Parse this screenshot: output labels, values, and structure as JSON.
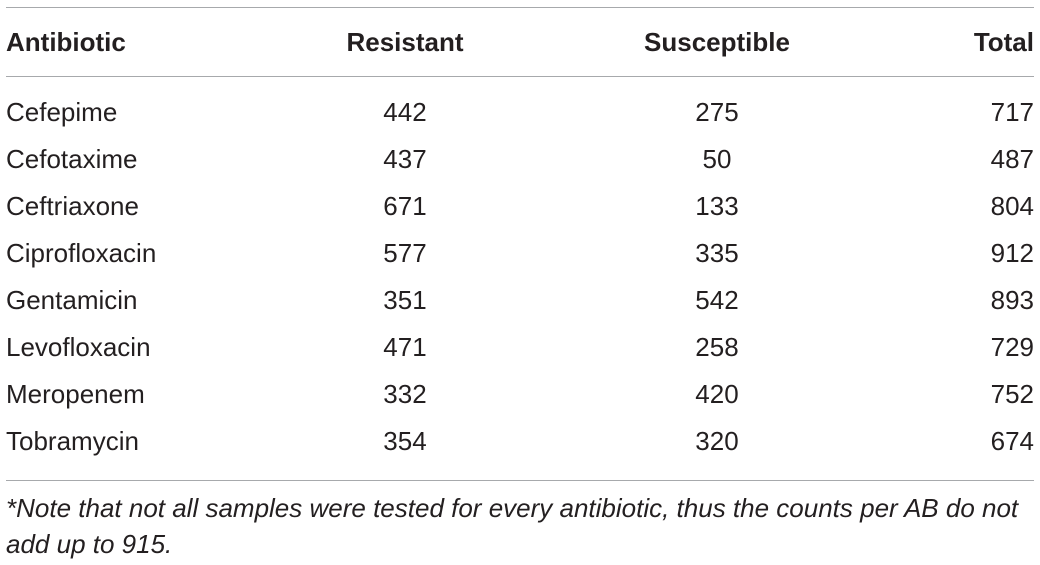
{
  "table": {
    "headers": {
      "antibiotic": "Antibiotic",
      "resistant": "Resistant",
      "susceptible": "Susceptible",
      "total": "Total"
    },
    "rows": [
      {
        "antibiotic": "Cefepime",
        "resistant": "442",
        "susceptible": "275",
        "total": "717"
      },
      {
        "antibiotic": "Cefotaxime",
        "resistant": "437",
        "susceptible": "50",
        "total": "487"
      },
      {
        "antibiotic": "Ceftriaxone",
        "resistant": "671",
        "susceptible": "133",
        "total": "804"
      },
      {
        "antibiotic": "Ciprofloxacin",
        "resistant": "577",
        "susceptible": "335",
        "total": "912"
      },
      {
        "antibiotic": "Gentamicin",
        "resistant": "351",
        "susceptible": "542",
        "total": "893"
      },
      {
        "antibiotic": "Levofloxacin",
        "resistant": "471",
        "susceptible": "258",
        "total": "729"
      },
      {
        "antibiotic": "Meropenem",
        "resistant": "332",
        "susceptible": "420",
        "total": "752"
      },
      {
        "antibiotic": "Tobramycin",
        "resistant": "354",
        "susceptible": "320",
        "total": "674"
      }
    ]
  },
  "footnote": "*Note that not all samples were tested for every antibiotic, thus the counts per AB do not add up to 915."
}
